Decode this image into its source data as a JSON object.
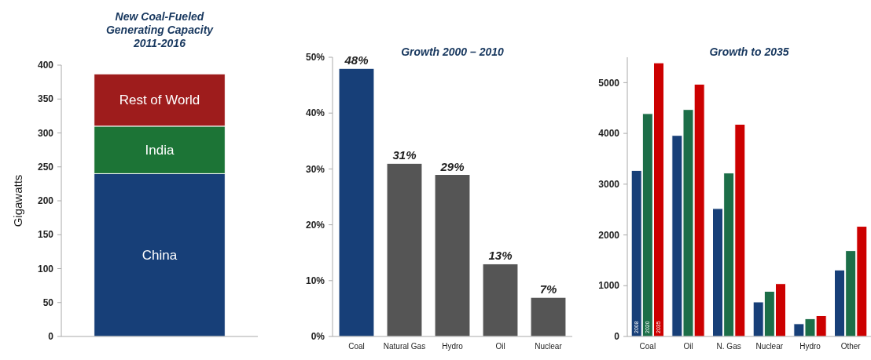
{
  "chart_data": [
    {
      "type": "bar",
      "title": "New Coal-Fueled\nGenerating Capacity\n2011-2016",
      "ylabel": "Gigawatts",
      "categories": [
        null
      ],
      "stacked": true,
      "ylim": [
        0,
        400
      ],
      "yticks": [
        0,
        50,
        100,
        150,
        200,
        250,
        300,
        350,
        400
      ],
      "series": [
        {
          "name": "China",
          "color": "#173f78",
          "values": [
            240
          ]
        },
        {
          "name": "India",
          "color": "#1c7436",
          "values": [
            70
          ]
        },
        {
          "name": "Rest of World",
          "color": "#9e1c1c",
          "values": [
            77
          ]
        }
      ]
    },
    {
      "type": "bar",
      "title": "Growth 2000 – 2010",
      "categories": [
        "Coal",
        "Natural Gas",
        "Hydro",
        "Oil",
        "Nuclear"
      ],
      "values": [
        48,
        31,
        29,
        13,
        7
      ],
      "colors": [
        "#173f78",
        "#555555",
        "#555555",
        "#555555",
        "#555555"
      ],
      "value_labels": [
        "48%",
        "31%",
        "29%",
        "13%",
        "7%"
      ],
      "ylim": [
        0,
        50
      ],
      "yticks": [
        {
          "value": 0,
          "label": "0%"
        },
        {
          "value": 10,
          "label": "10%"
        },
        {
          "value": 20,
          "label": "20%"
        },
        {
          "value": 30,
          "label": "30%"
        },
        {
          "value": 40,
          "label": "40%"
        },
        {
          "value": 50,
          "label": "50%"
        }
      ]
    },
    {
      "type": "bar",
      "title": "Growth to 2035",
      "categories": [
        "Coal",
        "Oil",
        "N. Gas",
        "Nuclear",
        "Hydro",
        "Other"
      ],
      "ylim": [
        0,
        5500
      ],
      "yticks": [
        0,
        1000,
        2000,
        3000,
        4000,
        5000
      ],
      "series": [
        {
          "name": "2008",
          "color": "#173f78",
          "values": [
            3270,
            3960,
            2520,
            680,
            250,
            1310
          ]
        },
        {
          "name": "2020",
          "color": "#1c6e48",
          "values": [
            4390,
            4470,
            3220,
            890,
            350,
            1690
          ]
        },
        {
          "name": "2035",
          "color": "#cc0000",
          "values": [
            5390,
            4970,
            4180,
            1040,
            410,
            2170
          ]
        }
      ]
    }
  ]
}
